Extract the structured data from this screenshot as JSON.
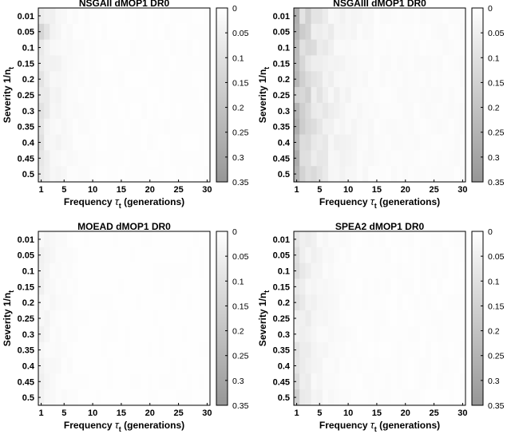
{
  "figure": {
    "colorbar_ticks": [
      "0",
      "0.05",
      "0.1",
      "0.15",
      "0.2",
      "0.25",
      "0.3",
      "0.35"
    ]
  },
  "chart_data": [
    {
      "type": "heatmap",
      "title": "NSGAII dMOP1 DR0",
      "xlabel_main": "Frequency",
      "xlabel_symbol": "τ",
      "xlabel_sub": "t",
      "xlabel_tail": "(generations)",
      "ylabel_main": "Severity 1/n",
      "ylabel_sub": "t",
      "x_ticks": [
        "1",
        "5",
        "10",
        "15",
        "20",
        "25",
        "30"
      ],
      "y_ticks": [
        "0.01",
        "0.05",
        "0.1",
        "0.15",
        "0.2",
        "0.25",
        "0.3",
        "0.35",
        "0.4",
        "0.45",
        "0.5"
      ],
      "colorbar": {
        "min": 0,
        "max": 0.35,
        "colormap": "white-to-gray"
      },
      "grid": {
        "cols": 30,
        "rows": 11
      },
      "intensity": {
        "col_profile": [
          0.08,
          0.05,
          0.035,
          0.028,
          0.02,
          0.015,
          0.012,
          0.01,
          0.009,
          0.008
        ],
        "tail": 0.006,
        "hotspots": [
          [
            0,
            1,
            0.14
          ],
          [
            1,
            1,
            0.09
          ],
          [
            0,
            8,
            0.1
          ],
          [
            0,
            4,
            0.09
          ],
          [
            0,
            9,
            0.08
          ],
          [
            0,
            2,
            0.07
          ],
          [
            0,
            3,
            0.06
          ],
          [
            1,
            4,
            0.05
          ]
        ]
      }
    },
    {
      "type": "heatmap",
      "title": "NSGAIII dMOP1 DR0",
      "xlabel_main": "Frequency",
      "xlabel_symbol": "τ",
      "xlabel_sub": "t",
      "xlabel_tail": "(generations)",
      "ylabel_main": "Severity 1/n",
      "ylabel_sub": "t",
      "x_ticks": [
        "1",
        "5",
        "10",
        "15",
        "20",
        "25",
        "30"
      ],
      "y_ticks": [
        "0.01",
        "0.05",
        "0.1",
        "0.15",
        "0.2",
        "0.25",
        "0.3",
        "0.35",
        "0.4",
        "0.45",
        "0.5"
      ],
      "colorbar": {
        "min": 0,
        "max": 0.35,
        "colormap": "white-to-gray"
      },
      "grid": {
        "cols": 30,
        "rows": 11
      },
      "intensity": {
        "col_profile": [
          0.2,
          0.15,
          0.11,
          0.085,
          0.07,
          0.055,
          0.045,
          0.038,
          0.032,
          0.028,
          0.024,
          0.02,
          0.018,
          0.016
        ],
        "tail": 0.012,
        "hotspots": [
          [
            0,
            0,
            0.26
          ],
          [
            0,
            4,
            0.24
          ],
          [
            0,
            6,
            0.25
          ],
          [
            0,
            10,
            0.25
          ],
          [
            0,
            8,
            0.23
          ],
          [
            1,
            1,
            0.17
          ],
          [
            1,
            6,
            0.16
          ],
          [
            2,
            8,
            0.12
          ]
        ]
      }
    },
    {
      "type": "heatmap",
      "title": "MOEAD dMOP1 DR0",
      "xlabel_main": "Frequency",
      "xlabel_symbol": "τ",
      "xlabel_sub": "t",
      "xlabel_tail": "(generations)",
      "ylabel_main": "Severity 1/n",
      "ylabel_sub": "t",
      "x_ticks": [
        "1",
        "5",
        "10",
        "15",
        "20",
        "25",
        "30"
      ],
      "y_ticks": [
        "0.01",
        "0.05",
        "0.1",
        "0.15",
        "0.2",
        "0.25",
        "0.3",
        "0.35",
        "0.4",
        "0.45",
        "0.5"
      ],
      "colorbar": {
        "min": 0,
        "max": 0.35,
        "colormap": "white-to-gray"
      },
      "grid": {
        "cols": 30,
        "rows": 11
      },
      "intensity": {
        "col_profile": [
          0.035,
          0.025,
          0.018,
          0.014,
          0.011,
          0.009,
          0.007
        ],
        "tail": 0.004,
        "hotspots": [
          [
            0,
            9,
            0.05
          ],
          [
            0,
            10,
            0.045
          ],
          [
            1,
            2,
            0.03
          ]
        ]
      }
    },
    {
      "type": "heatmap",
      "title": "SPEA2 dMOP1 DR0",
      "xlabel_main": "Frequency",
      "xlabel_symbol": "τ",
      "xlabel_sub": "t",
      "xlabel_tail": "(generations)",
      "ylabel_main": "Severity 1/n",
      "ylabel_sub": "t",
      "x_ticks": [
        "1",
        "5",
        "10",
        "15",
        "20",
        "25",
        "30"
      ],
      "y_ticks": [
        "0.01",
        "0.05",
        "0.1",
        "0.15",
        "0.2",
        "0.25",
        "0.3",
        "0.35",
        "0.4",
        "0.45",
        "0.5"
      ],
      "colorbar": {
        "min": 0,
        "max": 0.35,
        "colormap": "white-to-gray"
      },
      "grid": {
        "cols": 30,
        "rows": 11
      },
      "intensity": {
        "col_profile": [
          0.09,
          0.06,
          0.045,
          0.035,
          0.028,
          0.022,
          0.018,
          0.015,
          0.012,
          0.01
        ],
        "tail": 0.007,
        "hotspots": [
          [
            0,
            10,
            0.16
          ],
          [
            0,
            1,
            0.11
          ],
          [
            0,
            4,
            0.1
          ],
          [
            0,
            8,
            0.09
          ],
          [
            1,
            10,
            0.07
          ]
        ]
      }
    }
  ]
}
